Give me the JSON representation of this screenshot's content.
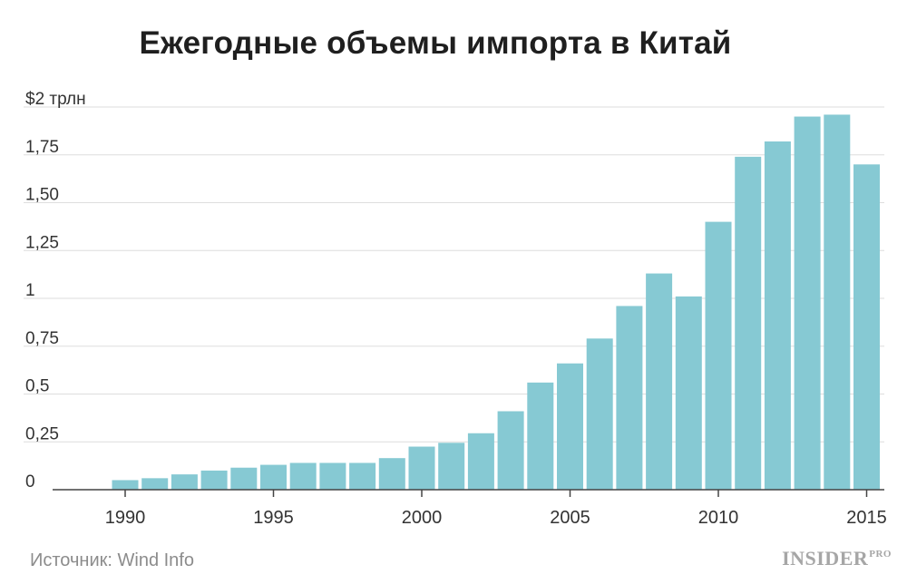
{
  "chart_data": {
    "type": "bar",
    "title": "Ежегодные объемы импорта в Китай",
    "xlabel": "",
    "ylabel": "",
    "x": [
      1990,
      1991,
      1992,
      1993,
      1994,
      1995,
      1996,
      1997,
      1998,
      1999,
      2000,
      2001,
      2002,
      2003,
      2004,
      2005,
      2006,
      2007,
      2008,
      2009,
      2010,
      2011,
      2012,
      2013,
      2014,
      2015
    ],
    "values": [
      0.05,
      0.06,
      0.08,
      0.1,
      0.115,
      0.13,
      0.14,
      0.14,
      0.14,
      0.165,
      0.225,
      0.245,
      0.295,
      0.41,
      0.56,
      0.66,
      0.79,
      0.96,
      1.13,
      1.01,
      1.4,
      1.74,
      1.82,
      1.95,
      1.96,
      1.7
    ],
    "ylim": [
      0,
      2
    ],
    "yticks": [
      {
        "value": 0,
        "label": "0"
      },
      {
        "value": 0.25,
        "label": "0,25"
      },
      {
        "value": 0.5,
        "label": "0,5"
      },
      {
        "value": 0.75,
        "label": "0,75"
      },
      {
        "value": 1,
        "label": "1"
      },
      {
        "value": 1.25,
        "label": "1,25"
      },
      {
        "value": 1.5,
        "label": "1,50"
      },
      {
        "value": 1.75,
        "label": "1,75"
      },
      {
        "value": 2,
        "label": "$2 трлн"
      }
    ],
    "xticks": [
      {
        "value": 1990,
        "label": "1990"
      },
      {
        "value": 1995,
        "label": "1995"
      },
      {
        "value": 2000,
        "label": "2000"
      },
      {
        "value": 2005,
        "label": "2005"
      },
      {
        "value": 2010,
        "label": "2010"
      },
      {
        "value": 2015,
        "label": "2015"
      }
    ],
    "grid": true,
    "bar_color": "#86c9d3"
  },
  "footer": {
    "source": "Источник: Wind Info",
    "brand": "INSIDER",
    "brand_suffix": "PRO"
  }
}
